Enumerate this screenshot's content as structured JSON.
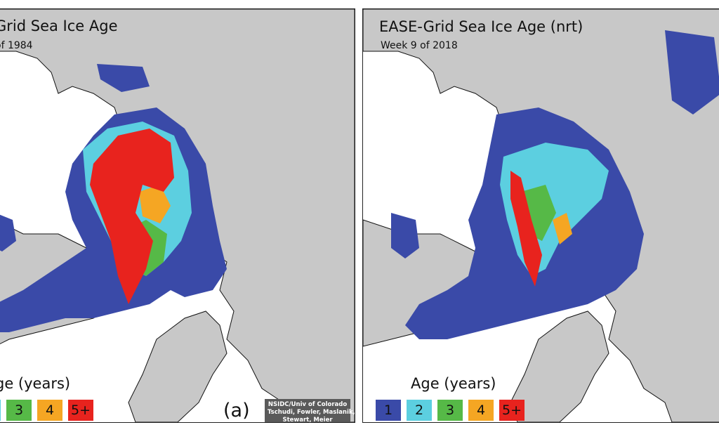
{
  "left_panel": {
    "title": "Grid Sea Ice Age",
    "subtitle": "of 1984",
    "legend_title": "ge (years)",
    "legend": [
      {
        "label": "",
        "color": "#5ccfe0"
      },
      {
        "label": "3",
        "color": "#56b947"
      },
      {
        "label": "4",
        "color": "#f5a623"
      },
      {
        "label": "5+",
        "color": "#e8231e"
      }
    ],
    "panel_label": "(a)",
    "credit": [
      "NSIDC/Univ of Colorado",
      "Tschudi, Fowler, Maslanik,",
      "Stewart, Meier"
    ]
  },
  "right_panel": {
    "title": "EASE-Grid Sea Ice Age (nrt)",
    "subtitle": "Week 9 of 2018",
    "legend_title": "Age (years)",
    "legend": [
      {
        "label": "1",
        "color": "#3a4aa8"
      },
      {
        "label": "2",
        "color": "#5ccfe0"
      },
      {
        "label": "3",
        "color": "#56b947"
      },
      {
        "label": "4",
        "color": "#f5a623"
      },
      {
        "label": "5+",
        "color": "#e8231e"
      }
    ]
  },
  "colors": {
    "land": "#c8c8c8",
    "ocean": "#ffffff",
    "coast": "#111111"
  }
}
